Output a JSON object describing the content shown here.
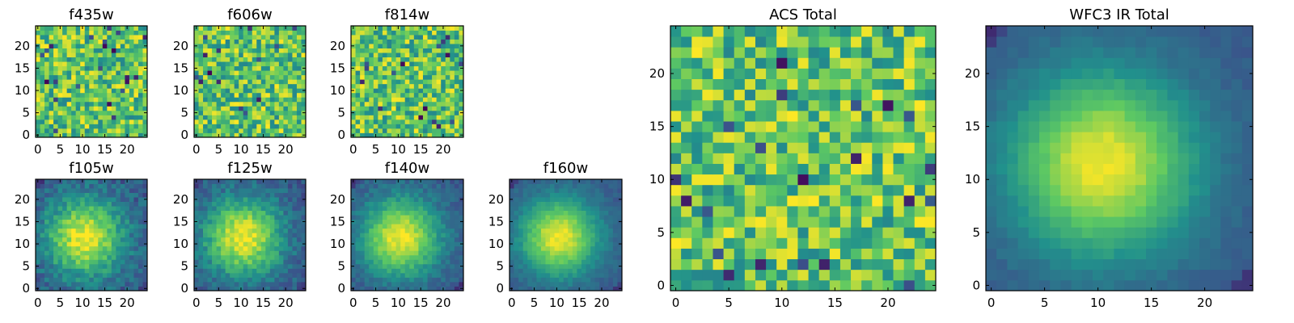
{
  "chart_data": [
    {
      "type": "heatmap",
      "title": "f435w",
      "pattern": "noise",
      "seed": 11,
      "dead_pixels": 22,
      "xlim": [
        0,
        25
      ],
      "ylim": [
        0,
        25
      ],
      "xticks": [
        0,
        5,
        10,
        15,
        20
      ],
      "yticks": [
        0,
        5,
        10,
        15,
        20
      ]
    },
    {
      "type": "heatmap",
      "title": "f606w",
      "pattern": "noise",
      "seed": 23,
      "dead_pixels": 14,
      "xlim": [
        0,
        25
      ],
      "ylim": [
        0,
        25
      ],
      "xticks": [
        0,
        5,
        10,
        15,
        20
      ],
      "yticks": [
        0,
        5,
        10,
        15,
        20
      ]
    },
    {
      "type": "heatmap",
      "title": "f814w",
      "pattern": "noise",
      "seed": 37,
      "dead_pixels": 16,
      "xlim": [
        0,
        25
      ],
      "ylim": [
        0,
        25
      ],
      "xticks": [
        0,
        5,
        10,
        15,
        20
      ],
      "yticks": [
        0,
        5,
        10,
        15,
        20
      ]
    },
    {
      "type": "heatmap",
      "title": "f105w",
      "pattern": "source",
      "center": [
        11,
        12
      ],
      "seed": 41,
      "noise": 0.22,
      "xlim": [
        0,
        25
      ],
      "ylim": [
        0,
        25
      ],
      "xticks": [
        0,
        5,
        10,
        15,
        20
      ],
      "yticks": [
        0,
        5,
        10,
        15,
        20
      ]
    },
    {
      "type": "heatmap",
      "title": "f125w",
      "pattern": "source",
      "center": [
        11,
        12
      ],
      "seed": 53,
      "noise": 0.2,
      "xlim": [
        0,
        25
      ],
      "ylim": [
        0,
        25
      ],
      "xticks": [
        0,
        5,
        10,
        15,
        20
      ],
      "yticks": [
        0,
        5,
        10,
        15,
        20
      ]
    },
    {
      "type": "heatmap",
      "title": "f140w",
      "pattern": "source",
      "center": [
        11,
        12
      ],
      "seed": 67,
      "noise": 0.14,
      "xlim": [
        0,
        25
      ],
      "ylim": [
        0,
        25
      ],
      "xticks": [
        0,
        5,
        10,
        15,
        20
      ],
      "yticks": [
        0,
        5,
        10,
        15,
        20
      ]
    },
    {
      "type": "heatmap",
      "title": "f160w",
      "pattern": "source",
      "center": [
        11,
        12
      ],
      "seed": 79,
      "noise": 0.1,
      "xlim": [
        0,
        25
      ],
      "ylim": [
        0,
        25
      ],
      "xticks": [
        0,
        5,
        10,
        15,
        20
      ],
      "yticks": [
        0,
        5,
        10,
        15,
        20
      ]
    },
    {
      "type": "heatmap",
      "title": "ACS Total",
      "pattern": "noise",
      "seed": 97,
      "dead_pixels": 22,
      "xlim": [
        0,
        25
      ],
      "ylim": [
        0,
        25
      ],
      "xticks": [
        0,
        5,
        10,
        15,
        20
      ],
      "yticks": [
        0,
        5,
        10,
        15,
        20
      ]
    },
    {
      "type": "heatmap",
      "title": "WFC3 IR Total",
      "pattern": "source",
      "center": [
        11,
        12
      ],
      "seed": 101,
      "noise": 0.06,
      "xlim": [
        0,
        25
      ],
      "ylim": [
        0,
        25
      ],
      "xticks": [
        0,
        5,
        10,
        15,
        20
      ],
      "yticks": [
        0,
        5,
        10,
        15,
        20
      ]
    }
  ],
  "colormap": [
    "#440154",
    "#3b528b",
    "#21918c",
    "#5ec962",
    "#fde725"
  ]
}
